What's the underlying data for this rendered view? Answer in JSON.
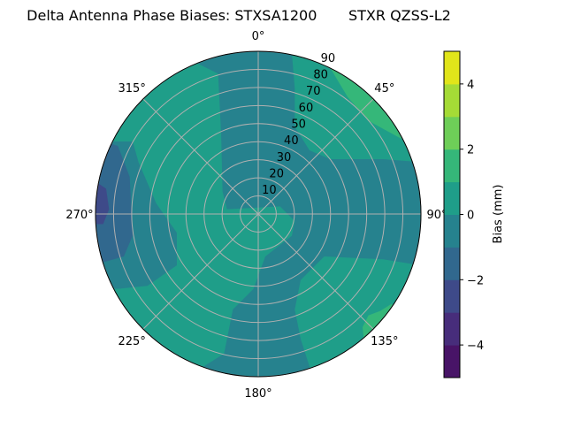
{
  "chart_data": {
    "type": "heatmap",
    "subtype": "polar-filled-contour",
    "title": "Delta Antenna Phase Biases: STXSA1200       STXR QZSS-L2",
    "angle_direction": "clockwise",
    "angle_zero": "top",
    "angle_ticks": [
      "0°",
      "45°",
      "90°",
      "135°",
      "180°",
      "225°",
      "270°",
      "315°"
    ],
    "radial_ticks": [
      "10",
      "20",
      "30",
      "40",
      "50",
      "60",
      "70",
      "80",
      "90"
    ],
    "radial_range": [
      0,
      90
    ],
    "grid": true,
    "colormap": "viridis",
    "colorbar": {
      "label": "Bias (mm)",
      "levels": [
        -5,
        -4,
        -3,
        -2,
        -1,
        0,
        1,
        2,
        3,
        4,
        5
      ],
      "ticks": [
        "−4",
        "−2",
        "0",
        "2",
        "4"
      ],
      "tick_values": [
        -4,
        -2,
        0,
        2,
        4
      ],
      "band_colors": [
        "#481467",
        "#472d7b",
        "#3e4a89",
        "#31688e",
        "#26828e",
        "#1f9e89",
        "#35b779",
        "#6ece58",
        "#a5db36",
        "#e1e51a"
      ]
    },
    "regions": [
      {
        "level_band": "-1 to 0",
        "description": "background over most of the sky"
      },
      {
        "level_band": "0 to 1",
        "where": "NW quadrant, centre to south-west, north-east and south-east"
      },
      {
        "level_band": "1 to 2",
        "where": "edges near 45° and 135°"
      },
      {
        "level_band": "-2 to -1",
        "where": "west edge near 270°"
      },
      {
        "level_band": "-3 to -2",
        "where": "west edge at 270°"
      }
    ]
  }
}
